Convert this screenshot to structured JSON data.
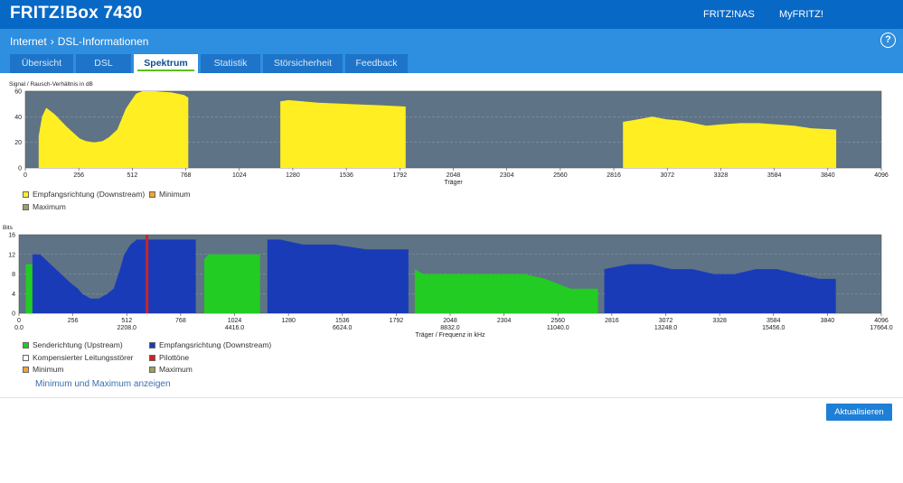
{
  "header": {
    "brand": "FRITZ!Box 7430",
    "links": [
      "FRITZ!NAS",
      "MyFRITZ!"
    ]
  },
  "breadcrumb": {
    "section": "Internet",
    "page": "DSL-Informationen"
  },
  "help_label": "?",
  "tabs": [
    {
      "label": "Übersicht",
      "active": false
    },
    {
      "label": "DSL",
      "active": false
    },
    {
      "label": "Spektrum",
      "active": true
    },
    {
      "label": "Statistik",
      "active": false
    },
    {
      "label": "Störsicherheit",
      "active": false
    },
    {
      "label": "Feedback",
      "active": false
    }
  ],
  "chart_data": [
    {
      "type": "area",
      "ylabel": "Signal / Rausch-Verhältnis in dB",
      "xlabel": "Träger",
      "xlim": [
        0,
        4096
      ],
      "ylim": [
        0,
        60
      ],
      "xticks": [
        0,
        256,
        512,
        768,
        1024,
        1280,
        1536,
        1792,
        2048,
        2304,
        2560,
        2816,
        3072,
        3328,
        3584,
        3840,
        4096
      ],
      "yticks": [
        0,
        20,
        40,
        60
      ],
      "background": "#5e7385",
      "series": [
        {
          "name": "Empfangsrichtung (Downstream)",
          "color": "#ffee22",
          "segments": [
            [
              [
                64,
                0
              ],
              [
                64,
                25
              ],
              [
                80,
                40
              ],
              [
                100,
                47
              ],
              [
                140,
                42
              ],
              [
                200,
                32
              ],
              [
                260,
                23
              ],
              [
                290,
                21
              ],
              [
                330,
                20
              ],
              [
                370,
                21
              ],
              [
                400,
                24
              ],
              [
                440,
                30
              ],
              [
                460,
                38
              ],
              [
                480,
                46
              ],
              [
                500,
                51
              ],
              [
                530,
                58
              ],
              [
                560,
                60
              ],
              [
                620,
                60
              ],
              [
                700,
                59
              ],
              [
                760,
                57
              ],
              [
                780,
                55
              ],
              [
                780,
                0
              ]
            ],
            [
              [
                1220,
                0
              ],
              [
                1220,
                52
              ],
              [
                1260,
                53
              ],
              [
                1400,
                51
              ],
              [
                1550,
                50
              ],
              [
                1700,
                49
              ],
              [
                1820,
                48
              ],
              [
                1820,
                0
              ]
            ],
            [
              [
                2860,
                0
              ],
              [
                2860,
                36
              ],
              [
                2930,
                38
              ],
              [
                3000,
                40
              ],
              [
                3070,
                38
              ],
              [
                3140,
                37
              ],
              [
                3200,
                35
              ],
              [
                3260,
                33
              ],
              [
                3330,
                34
              ],
              [
                3420,
                35
              ],
              [
                3510,
                35
              ],
              [
                3590,
                34
              ],
              [
                3680,
                33
              ],
              [
                3760,
                31
              ],
              [
                3880,
                30
              ],
              [
                3880,
                0
              ]
            ]
          ]
        }
      ],
      "legend": [
        {
          "label": "Empfangsrichtung (Downstream)",
          "color": "#ffee22"
        },
        {
          "label": "Minimum",
          "color": "#f2a33a"
        },
        {
          "label": "Maximum",
          "color": "#a0a060"
        }
      ]
    },
    {
      "type": "area",
      "ylabel": "Bits",
      "xlabel": "Träger / Frequenz in kHz",
      "xlim": [
        0,
        4096
      ],
      "ylim": [
        0,
        16
      ],
      "xticks": [
        0,
        256,
        512,
        768,
        1024,
        1280,
        1536,
        1792,
        2048,
        2304,
        2560,
        2816,
        3072,
        3328,
        3584,
        3840,
        4096
      ],
      "freq_ticks": [
        [
          0,
          "0.0"
        ],
        [
          512,
          "2208.0"
        ],
        [
          1024,
          "4416.0"
        ],
        [
          1536,
          "6624.0"
        ],
        [
          2048,
          "8832.0"
        ],
        [
          2560,
          "11040.0"
        ],
        [
          3072,
          "13248.0"
        ],
        [
          3584,
          "15456.0"
        ],
        [
          4096,
          "17664.0"
        ]
      ],
      "yticks": [
        0,
        4,
        8,
        12,
        16
      ],
      "background": "#5e7385",
      "series": [
        {
          "name": "Senderichtung (Upstream)",
          "color": "#22cc22",
          "segments": [
            [
              [
                32,
                0
              ],
              [
                32,
                10
              ],
              [
                64,
                10
              ],
              [
                64,
                0
              ]
            ],
            [
              [
                880,
                0
              ],
              [
                880,
                11
              ],
              [
                900,
                12
              ],
              [
                950,
                12
              ],
              [
                1000,
                12
              ],
              [
                1050,
                12
              ],
              [
                1100,
                12
              ],
              [
                1145,
                12
              ],
              [
                1145,
                0
              ]
            ],
            [
              [
                1880,
                0
              ],
              [
                1880,
                9
              ],
              [
                1920,
                8
              ],
              [
                2100,
                8
              ],
              [
                2300,
                8
              ],
              [
                2400,
                8
              ],
              [
                2500,
                7
              ],
              [
                2560,
                6
              ],
              [
                2620,
                5
              ],
              [
                2750,
                5
              ],
              [
                2750,
                0
              ]
            ]
          ]
        },
        {
          "name": "Empfangsrichtung (Downstream)",
          "color": "#1a3bb8",
          "segments": [
            [
              [
                64,
                0
              ],
              [
                64,
                12
              ],
              [
                100,
                12
              ],
              [
                150,
                10
              ],
              [
                200,
                8
              ],
              [
                250,
                6
              ],
              [
                280,
                5
              ],
              [
                300,
                4
              ],
              [
                340,
                3
              ],
              [
                380,
                3
              ],
              [
                420,
                4
              ],
              [
                450,
                5
              ],
              [
                480,
                9
              ],
              [
                500,
                12
              ],
              [
                530,
                14
              ],
              [
                560,
                15
              ],
              [
                700,
                15
              ],
              [
                760,
                15
              ],
              [
                840,
                15
              ],
              [
                840,
                0
              ]
            ],
            [
              [
                1180,
                0
              ],
              [
                1180,
                15
              ],
              [
                1240,
                15
              ],
              [
                1350,
                14
              ],
              [
                1500,
                14
              ],
              [
                1650,
                13
              ],
              [
                1800,
                13
              ],
              [
                1850,
                13
              ],
              [
                1850,
                0
              ]
            ],
            [
              [
                2780,
                0
              ],
              [
                2780,
                9
              ],
              [
                2900,
                10
              ],
              [
                3000,
                10
              ],
              [
                3100,
                9
              ],
              [
                3200,
                9
              ],
              [
                3300,
                8
              ],
              [
                3400,
                8
              ],
              [
                3500,
                9
              ],
              [
                3600,
                9
              ],
              [
                3700,
                8
              ],
              [
                3800,
                7
              ],
              [
                3880,
                7
              ],
              [
                3880,
                0
              ]
            ]
          ]
        },
        {
          "name": "Pilottöne",
          "color": "#d42020",
          "lines": [
            608
          ]
        }
      ],
      "legend": [
        {
          "label": "Senderichtung (Upstream)",
          "color": "#22cc22"
        },
        {
          "label": "Empfangsrichtung (Downstream)",
          "color": "#1a3bb8"
        },
        {
          "label": "Kompensierter Leitungsstörer",
          "color": "#ffffff"
        },
        {
          "label": "Pilottöne",
          "color": "#d42020"
        },
        {
          "label": "Minimum",
          "color": "#f2a33a"
        },
        {
          "label": "Maximum",
          "color": "#a0a060"
        }
      ]
    }
  ],
  "show_minmax_link": "Minimum und Maximum anzeigen",
  "refresh_button": "Aktualisieren"
}
